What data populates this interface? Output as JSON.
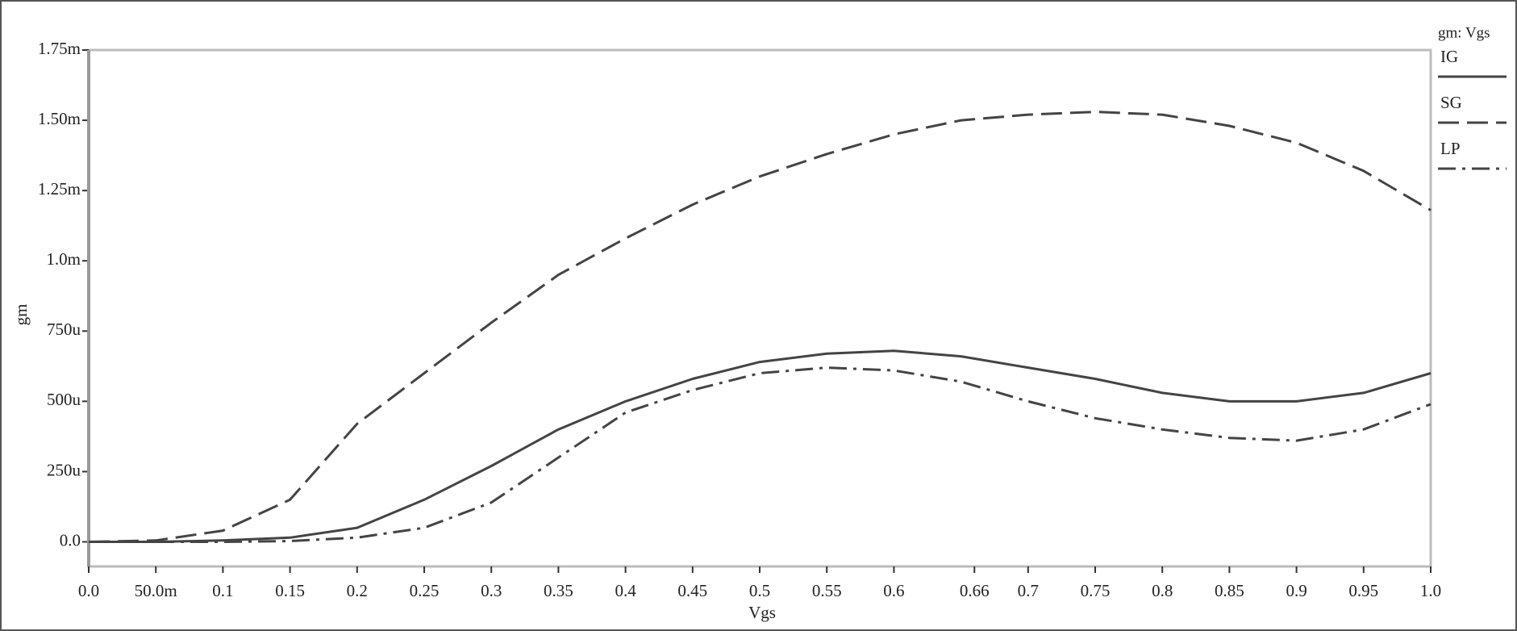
{
  "chart_data": {
    "type": "line",
    "xlabel": "Vgs",
    "ylabel": "gm",
    "legend_title": "gm: Vgs",
    "legend": "right",
    "x": [
      0,
      0.05,
      0.1,
      0.15,
      0.2,
      0.25,
      0.3,
      0.35,
      0.4,
      0.45,
      0.5,
      0.55,
      0.6,
      0.65,
      0.7,
      0.75,
      0.8,
      0.85,
      0.9,
      0.95,
      1
    ],
    "series": [
      {
        "name": "IG",
        "color": "#444444",
        "dash": "solid",
        "values": [
          0,
          0,
          5e-06,
          1.5e-05,
          5e-05,
          0.00015,
          0.00027,
          0.0004,
          0.0005,
          0.00058,
          0.00064,
          0.00067,
          0.00068,
          0.00066,
          0.00062,
          0.00058,
          0.00053,
          0.0005,
          0.0005,
          0.00053,
          0.0006
        ]
      },
      {
        "name": "SG",
        "color": "#444444",
        "dash": "dashed",
        "values": [
          0,
          5e-06,
          4e-05,
          0.00015,
          0.00042,
          0.0006,
          0.00078,
          0.00095,
          0.00108,
          0.0012,
          0.0013,
          0.00138,
          0.00145,
          0.0015,
          0.00152,
          0.00153,
          0.00152,
          0.00148,
          0.00142,
          0.00132,
          0.00118
        ]
      },
      {
        "name": "LP",
        "color": "#444444",
        "dash": "dashdot",
        "values": [
          0,
          0,
          0,
          3e-06,
          1.5e-05,
          5e-05,
          0.00014,
          0.0003,
          0.00046,
          0.00054,
          0.0006,
          0.00062,
          0.00061,
          0.00057,
          0.0005,
          0.00044,
          0.0004,
          0.00037,
          0.00036,
          0.0004,
          0.00049
        ]
      }
    ],
    "xlim": [
      0,
      1
    ],
    "ylim": [
      -8.75e-05,
      0.00175
    ],
    "xticks": [
      {
        "value": 0,
        "label": "0.0"
      },
      {
        "value": 0.05,
        "label": "50.0m"
      },
      0.1,
      0.15,
      0.2,
      0.25,
      0.3,
      0.35,
      0.4,
      0.45,
      0.5,
      0.55,
      0.6,
      0.66,
      0.7,
      0.75,
      0.8,
      0.85,
      0.9,
      0.95,
      {
        "value": 1,
        "label": "1.0"
      }
    ],
    "yticks": [
      {
        "value": 0,
        "label": "0.0"
      },
      {
        "value": 0.00025,
        "label": "250u"
      },
      {
        "value": 0.0005,
        "label": "500u"
      },
      {
        "value": 0.00075,
        "label": "750u"
      },
      {
        "value": 0.001,
        "label": "1.0m"
      },
      {
        "value": 0.00125,
        "label": "1.25m"
      },
      {
        "value": 0.0015,
        "label": "1.50m"
      },
      {
        "value": 0.00175,
        "label": "1.75m"
      }
    ]
  }
}
